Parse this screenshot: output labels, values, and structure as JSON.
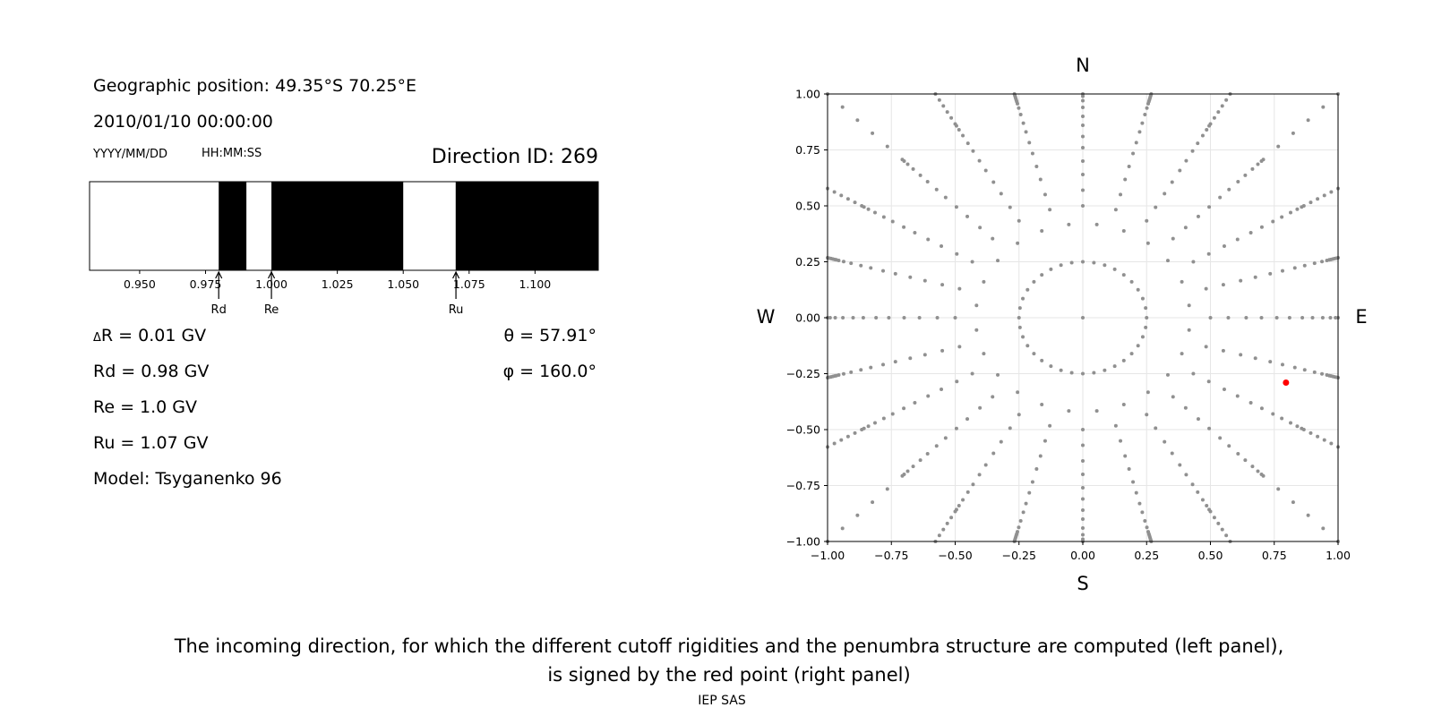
{
  "left_panel": {
    "geo_position": "Geographic position: 49.35°S 70.25°E",
    "datetime": "2010/01/10 00:00:00",
    "date_format": "YYYY/MM/DD",
    "time_format": "HH:MM:SS",
    "direction_id": "Direction ID: 269",
    "delta_r_symbol": "Δ",
    "delta_r": "R = 0.01 GV",
    "rd": "Rd = 0.98 GV",
    "re": "Re = 1.0 GV",
    "ru": "Ru = 1.07 GV",
    "model": "Model: Tsyganenko 96",
    "theta": "θ = 57.91°",
    "phi": "φ = 160.0°"
  },
  "right_panel": {
    "north": "N",
    "south": "S",
    "west": "W",
    "east": "E"
  },
  "caption": {
    "line1": "The incoming direction, for which the different cutoff rigidities and the penumbra structure are computed (left panel),",
    "line2": "is signed by the red point (right panel)"
  },
  "footer": "IEP SAS",
  "chart_data": [
    {
      "type": "penumbra-bar",
      "xlim": [
        0.931,
        1.124
      ],
      "tick_values": [
        0.95,
        0.975,
        1.0,
        1.025,
        1.05,
        1.075,
        1.1
      ],
      "tick_labels": [
        "0.950",
        "0.975",
        "1.000",
        "1.025",
        "1.050",
        "1.075",
        "1.100"
      ],
      "forbidden_color": "#000000",
      "allowed_color": "#ffffff",
      "forbidden_intervals": [
        [
          0.98,
          0.9905
        ],
        [
          1.0,
          1.05
        ],
        [
          1.0699,
          1.124
        ]
      ],
      "markers": [
        {
          "label": "Rd",
          "value": 0.98
        },
        {
          "label": "Re",
          "value": 1.0
        },
        {
          "label": "Ru",
          "value": 1.07
        }
      ]
    },
    {
      "type": "scatter",
      "xlim": [
        -1.0,
        1.0
      ],
      "ylim": [
        -1.0,
        1.0
      ],
      "tick_values": [
        -1.0,
        -0.75,
        -0.5,
        -0.25,
        0.0,
        0.25,
        0.5,
        0.75,
        1.0
      ],
      "tick_labels": [
        "−1.00",
        "−0.75",
        "−0.50",
        "−0.25",
        "0.00",
        "0.25",
        "0.50",
        "0.75",
        "1.00"
      ],
      "grid": true,
      "point_color": "#909090",
      "highlight_color": "#ff0000",
      "point_pattern": {
        "center": [
          0,
          0
        ],
        "rings": [
          {
            "radius": 0.25,
            "count": 36
          },
          {
            "radius": 0.42,
            "count": 24
          },
          {
            "radius_range": [
              0.5,
              1.0
            ],
            "count_per_row": 24,
            "radii": [
              0.5,
              0.57,
              0.64,
              0.7,
              0.76,
              0.81,
              0.86,
              0.9,
              0.94,
              0.97,
              0.99,
              1.0
            ]
          }
        ]
      },
      "highlight_point": {
        "x": 0.796,
        "y": -0.29
      }
    }
  ]
}
